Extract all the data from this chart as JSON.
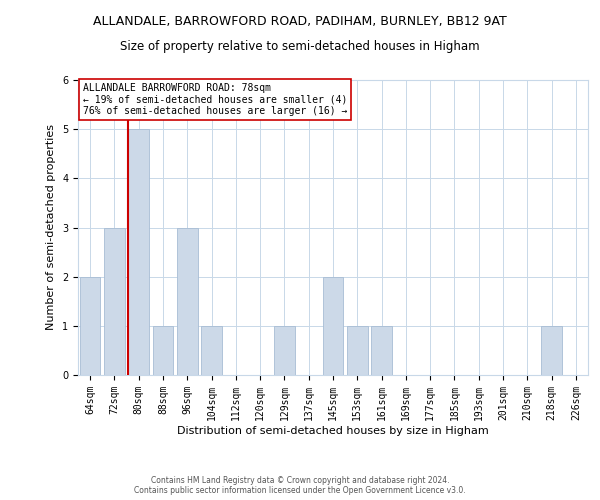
{
  "title": "ALLANDALE, BARROWFORD ROAD, PADIHAM, BURNLEY, BB12 9AT",
  "subtitle": "Size of property relative to semi-detached houses in Higham",
  "xlabel": "Distribution of semi-detached houses by size in Higham",
  "ylabel": "Number of semi-detached properties",
  "categories": [
    "64sqm",
    "72sqm",
    "80sqm",
    "88sqm",
    "96sqm",
    "104sqm",
    "112sqm",
    "120sqm",
    "129sqm",
    "137sqm",
    "145sqm",
    "153sqm",
    "161sqm",
    "169sqm",
    "177sqm",
    "185sqm",
    "193sqm",
    "201sqm",
    "210sqm",
    "218sqm",
    "226sqm"
  ],
  "values": [
    2,
    3,
    5,
    1,
    3,
    1,
    0,
    0,
    1,
    0,
    2,
    1,
    1,
    0,
    0,
    0,
    0,
    0,
    0,
    1,
    0
  ],
  "bar_color": "#ccd9e8",
  "bar_edge_color": "#a8bdd4",
  "grid_color": "#c8d8e8",
  "background_color": "#ffffff",
  "red_line_color": "#cc0000",
  "red_line_index": 2,
  "annotation_text": "ALLANDALE BARROWFORD ROAD: 78sqm\n← 19% of semi-detached houses are smaller (4)\n76% of semi-detached houses are larger (16) →",
  "annotation_box_color": "#ffffff",
  "annotation_border_color": "#cc0000",
  "footer_line1": "Contains HM Land Registry data © Crown copyright and database right 2024.",
  "footer_line2": "Contains public sector information licensed under the Open Government Licence v3.0.",
  "ylim": [
    0,
    6
  ],
  "yticks": [
    0,
    1,
    2,
    3,
    4,
    5,
    6
  ],
  "title_fontsize": 9,
  "subtitle_fontsize": 8.5,
  "tick_fontsize": 7,
  "ylabel_fontsize": 8,
  "xlabel_fontsize": 8,
  "annotation_fontsize": 7,
  "footer_fontsize": 5.5
}
